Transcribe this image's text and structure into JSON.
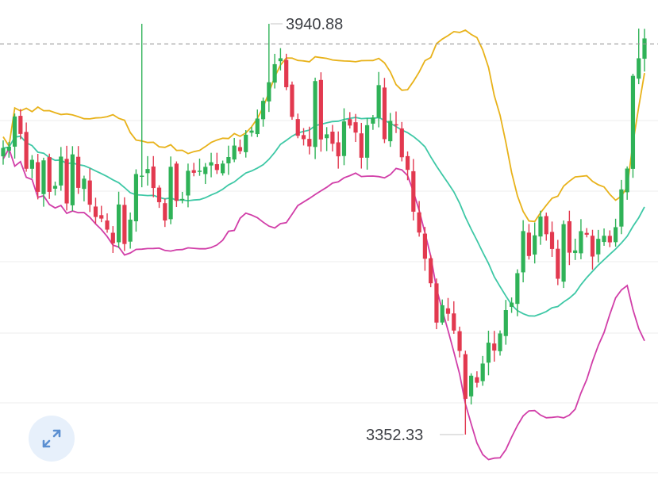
{
  "chart_data": {
    "type": "candlestick",
    "title": "",
    "xlabel": "",
    "ylabel": "",
    "ylim": [
      3352.33,
      3940.88
    ],
    "grid": true,
    "current_price_line": 3912,
    "annotations": {
      "high": {
        "label": "3940.88",
        "value": 3940.88
      },
      "low": {
        "label": "3352.33",
        "value": 3352.33
      }
    },
    "colors": {
      "up": "#2fb257",
      "down": "#e2394f",
      "upper_band": "#e8b21a",
      "middle_band": "#3ec8a6",
      "lower_band": "#d13ea8",
      "grid": "#ececec",
      "dash": "#9a9a9a"
    },
    "candles_close": [
      3763.0,
      3764.8,
      3808.1,
      3783.1,
      3733.2,
      3746.0,
      3700.1,
      3745.2,
      3700.1,
      3708.7,
      3750.6,
      3683.5,
      3753.8,
      3705.8,
      3719.0,
      3681.7,
      3664.1,
      3661.8,
      3646.0,
      3626.4,
      3682.0,
      3625.4,
      3660.3,
      3725.6,
      3723.3,
      3732.8,
      3705.6,
      3685.3,
      3659.1,
      3736.0,
      3687.2,
      3690.0,
      3730.3,
      3727.4,
      3730.4,
      3735.9,
      3742.5,
      3731.4,
      3740.6,
      3750.0,
      3766.4,
      3758.4,
      3781.9,
      3787.9,
      3805.1,
      3830.5,
      3857.1,
      3883.0,
      3891.5,
      3850.0,
      3807.5,
      3780.4,
      3775.6,
      3765.2,
      3858.8,
      3775.2,
      3782.5,
      3769.0,
      3751.0,
      3801.0,
      3795.1,
      3785.0,
      3749.0,
      3795.6,
      3806.4,
      3853.0,
      3775.6,
      3801.7,
      3795.6,
      3749.7,
      3731.6,
      3671.7,
      3641.8,
      3604.3,
      3569.1,
      3512.8,
      3537.6,
      3525.4,
      3501.4,
      3472.2,
      3403.6,
      3436.7,
      3426.6,
      3454.1,
      3484.0,
      3472.7,
      3497.2,
      3530.7,
      3541.4,
      3583.6,
      3643.9,
      3608.2,
      3637.8,
      3664.7,
      3639.4,
      3618.3,
      3575.6,
      3653.8,
      3613.0,
      3616.2,
      3643.8,
      3638.7,
      3607.4,
      3632.8,
      3637.2,
      3627.8,
      3649.5,
      3703.6,
      3733.5,
      3866.3,
      3891.5,
      3919.9
    ]
  },
  "ui": {
    "expand_icon": "expand-diagonal-arrows-icon",
    "expand_bg": "#e7f0fb",
    "expand_color": "#5b8fd1"
  }
}
